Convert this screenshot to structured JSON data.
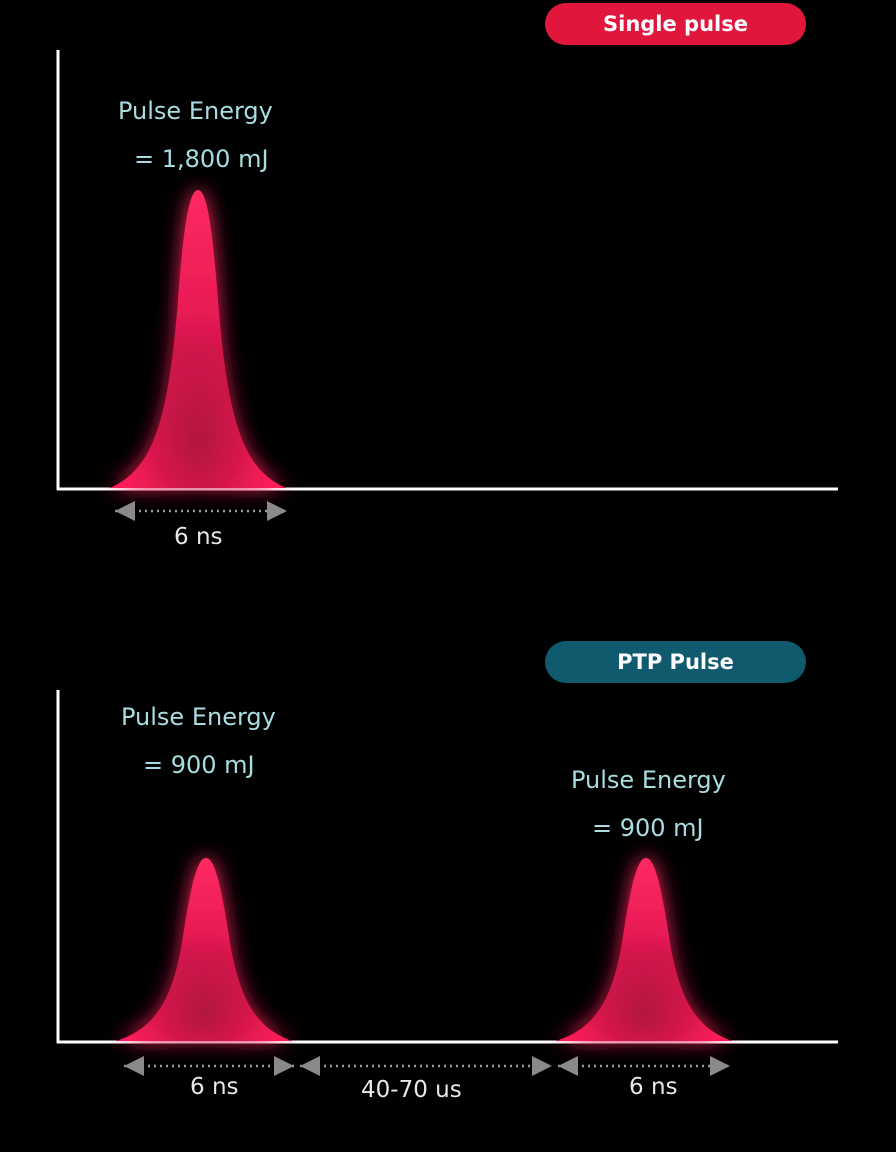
{
  "single": {
    "badge": "Single pulse",
    "energy_label": "Pulse Energy",
    "energy_value": "= 1,800 mJ",
    "width_label": "6 ns"
  },
  "ptp": {
    "badge": "PTP Pulse",
    "pulse1": {
      "energy_label": "Pulse Energy",
      "energy_value": "= 900  mJ",
      "width_label": "6 ns"
    },
    "pulse2": {
      "energy_label": "Pulse Energy",
      "energy_value": "= 900  mJ",
      "width_label": "6 ns"
    },
    "gap_label": "40-70 us"
  },
  "colors": {
    "pulse": "#ff1f5a",
    "single_badge": "#e0163c",
    "ptp_badge": "#0f5a6c",
    "label_text": "#a9dce1",
    "axis": "#ffffff"
  }
}
